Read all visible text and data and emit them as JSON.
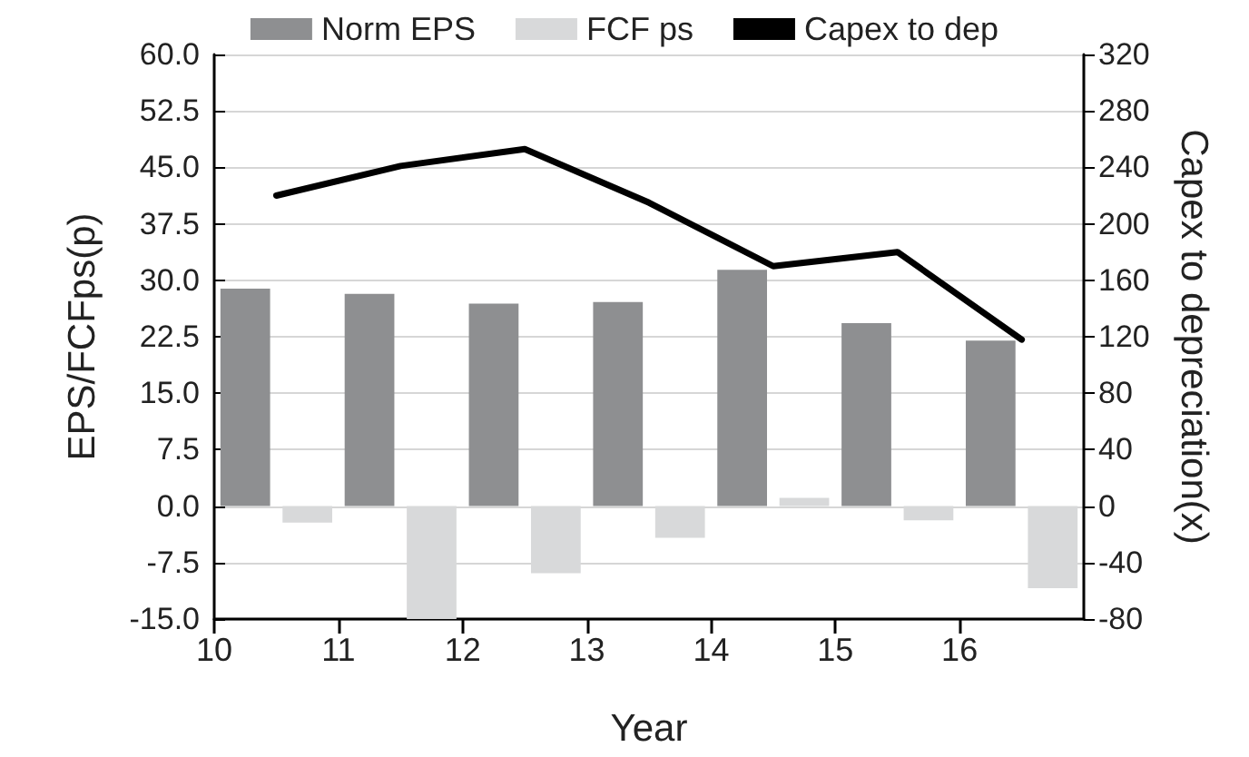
{
  "chart_data": {
    "type": "bar",
    "xlabel": "Year",
    "ylabel": "EPS/FCFps(p)",
    "y2label": "Capex to depreciation(x)",
    "xlim": [
      10,
      17
    ],
    "xticks": [
      10,
      11,
      12,
      13,
      14,
      15,
      16
    ],
    "ylim": [
      -15,
      60
    ],
    "yticks": [
      {
        "value": -15,
        "label": "-15.0"
      },
      {
        "value": -7.5,
        "label": "-7.5"
      },
      {
        "value": 0,
        "label": "0.0"
      },
      {
        "value": 7.5,
        "label": "7.5"
      },
      {
        "value": 15,
        "label": "15.0"
      },
      {
        "value": 22.5,
        "label": "22.5"
      },
      {
        "value": 30,
        "label": "30.0"
      },
      {
        "value": 37.5,
        "label": "37.5"
      },
      {
        "value": 45,
        "label": "45.0"
      },
      {
        "value": 52.5,
        "label": "52.5"
      },
      {
        "value": 60,
        "label": "60.0"
      }
    ],
    "y2lim": [
      -80,
      320
    ],
    "y2ticks": [
      -80,
      -40,
      0,
      40,
      80,
      120,
      160,
      200,
      240,
      280,
      320
    ],
    "grid": "y",
    "legend": "top",
    "marker": "none",
    "series": [
      {
        "name": "Norm EPS",
        "color": "#8e8f91",
        "x": [
          10.25,
          11.25,
          12.25,
          13.25,
          14.25,
          15.25,
          16.25
        ],
        "values": [
          28.9,
          28.2,
          26.9,
          27.1,
          31.4,
          24.3,
          22.0
        ]
      },
      {
        "name": "FCF ps",
        "color": "#d8d9da",
        "x": [
          10.75,
          11.75,
          12.75,
          13.75,
          14.75,
          15.75,
          16.75
        ],
        "values": [
          -2.2,
          -15.0,
          -8.9,
          -4.2,
          1.1,
          -1.9,
          -10.9
        ]
      },
      {
        "name": "Capex to dep",
        "type": "line",
        "axis": "y2",
        "color": "#000000",
        "x": [
          10.5,
          11.5,
          12.5,
          13.5,
          14.5,
          15.5,
          16.5
        ],
        "values": [
          220,
          241,
          253,
          215,
          170,
          180,
          118
        ]
      }
    ]
  }
}
